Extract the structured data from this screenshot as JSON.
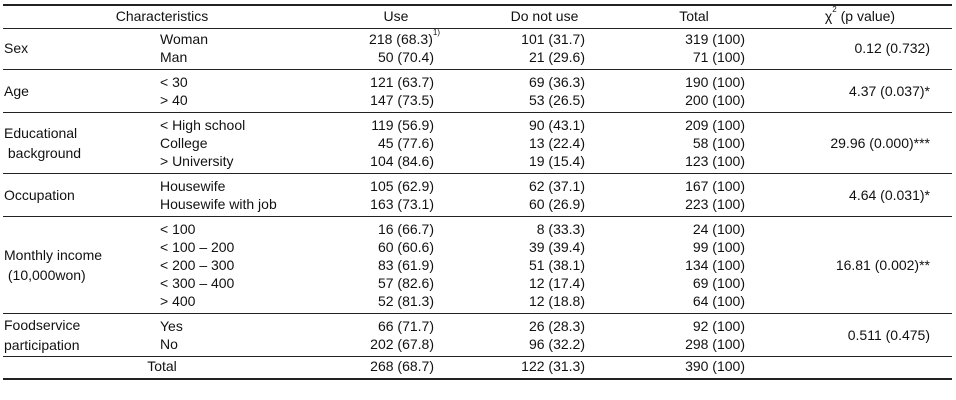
{
  "header": {
    "characteristics": "Characteristics",
    "use": "Use",
    "do_not_use": "Do not use",
    "total": "Total",
    "chi_symbol": "χ",
    "chi_sup": "2",
    "chi_rest": " (p value)"
  },
  "groups": [
    {
      "label_lines": [
        "Sex"
      ],
      "chi": "0.12  (0.732)",
      "rows": [
        {
          "sub": "Woman",
          "use": "218 (68.3)",
          "use_note": "1)",
          "not_use": "101 (31.7)",
          "total": "319 (100)"
        },
        {
          "sub": "Man",
          "use": "50 (70.4)",
          "not_use": "21 (29.6)",
          "total": "71 (100)"
        }
      ]
    },
    {
      "label_lines": [
        "Age"
      ],
      "chi": "4.37  (0.037)*",
      "rows": [
        {
          "sub": "< 30",
          "use": "121 (63.7)",
          "not_use": "69 (36.3)",
          "total": "190 (100)"
        },
        {
          "sub": "> 40",
          "use": "147 (73.5)",
          "not_use": "53 (26.5)",
          "total": "200 (100)"
        }
      ]
    },
    {
      "label_lines": [
        "Educational",
        " background"
      ],
      "chi": "29.96  (0.000)***",
      "rows": [
        {
          "sub": "< High school",
          "use": "119 (56.9)",
          "not_use": "90 (43.1)",
          "total": "209 (100)"
        },
        {
          "sub": "College",
          "use": "45 (77.6)",
          "not_use": "13 (22.4)",
          "total": "58 (100)"
        },
        {
          "sub": "> University",
          "use": "104 (84.6)",
          "not_use": "19 (15.4)",
          "total": "123 (100)"
        }
      ]
    },
    {
      "label_lines": [
        "Occupation"
      ],
      "chi": "4.64  (0.031)*",
      "rows": [
        {
          "sub": "Housewife",
          "use": "105 (62.9)",
          "not_use": "62 (37.1)",
          "total": "167 (100)"
        },
        {
          "sub": "Housewife with job",
          "use": "163 (73.1)",
          "not_use": "60 (26.9)",
          "total": "223 (100)"
        }
      ]
    },
    {
      "label_lines": [
        "Monthly income",
        " (10,000won)"
      ],
      "chi": "16.81  (0.002)**",
      "rows": [
        {
          "sub": "< 100",
          "use": "16 (66.7)",
          "not_use": "8 (33.3)",
          "total": "24 (100)"
        },
        {
          "sub": "< 100 – 200",
          "use": "60 (60.6)",
          "not_use": "39 (39.4)",
          "total": "99 (100)"
        },
        {
          "sub": "< 200 – 300",
          "use": "83 (61.9)",
          "not_use": "51 (38.1)",
          "total": "134 (100)"
        },
        {
          "sub": "< 300 – 400",
          "use": "57 (82.6)",
          "not_use": "12 (17.4)",
          "total": "69 (100)"
        },
        {
          "sub": "> 400",
          "use": "52 (81.3)",
          "not_use": "12 (18.8)",
          "total": "64 (100)"
        }
      ]
    },
    {
      "label_lines": [
        "Foodservice",
        "participation"
      ],
      "chi": "0.511 (0.475)",
      "rows": [
        {
          "sub": "Yes",
          "use": "66 (71.7)",
          "not_use": "26 (28.3)",
          "total": "92 (100)"
        },
        {
          "sub": "No",
          "use": "202 (67.8)",
          "not_use": "96 (32.2)",
          "total": "298 (100)"
        }
      ]
    }
  ],
  "total_row": {
    "label": "Total",
    "use": "268 (68.7)",
    "not_use": "122 (31.3)",
    "total": "390 (100)"
  }
}
